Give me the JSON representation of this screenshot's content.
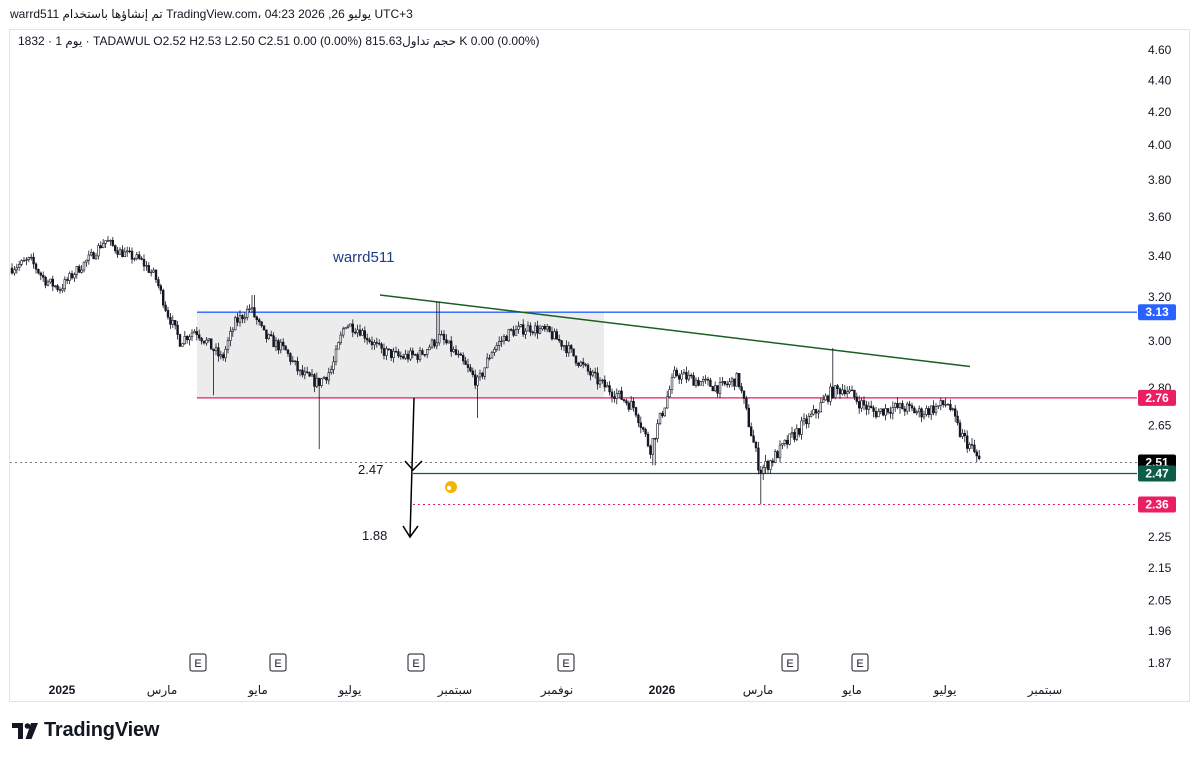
{
  "header": {
    "publish_line": "warrd511 تم إنشاؤها باستخدام TradingView.com، 04:23 2026 ,26 يوليو UTC+3",
    "symbol_line": "1832 · 1 يوم · TADAWUL   O2.52   H2.53   L2.50   C2.51   0.00 (0.00%)   حجم تداول815.63 K   0.00 (0.00%)"
  },
  "branding": {
    "logo_text": "TradingView",
    "logo_icon": "tradingview-logo-icon"
  },
  "chart_data": {
    "type": "candlestick",
    "watermark": "warrd511",
    "y_ticks": [
      "4.60",
      "4.40",
      "4.20",
      "4.00",
      "3.80",
      "3.60",
      "3.40",
      "3.20",
      "3.00",
      "2.80",
      "2.65",
      "2.25",
      "2.15",
      "2.05",
      "1.96",
      "1.87"
    ],
    "y_scale": "log",
    "x_labels": [
      {
        "text": "2025",
        "bold": true
      },
      {
        "text": "مارس",
        "bold": false
      },
      {
        "text": "مايو",
        "bold": false
      },
      {
        "text": "يوليو",
        "bold": false
      },
      {
        "text": "سبتمبر",
        "bold": false
      },
      {
        "text": "نوفمبر",
        "bold": false
      },
      {
        "text": "2026",
        "bold": true
      },
      {
        "text": "مارس",
        "bold": false
      },
      {
        "text": "مايو",
        "bold": false
      },
      {
        "text": "يوليو",
        "bold": false
      },
      {
        "text": "سبتمبر",
        "bold": false
      }
    ],
    "earnings_markers": [
      "E",
      "E",
      "E",
      "E",
      "E",
      "E"
    ],
    "price_badges": [
      {
        "value": "3.13",
        "color": "#2962ff"
      },
      {
        "value": "2.76",
        "color": "#e91e63"
      },
      {
        "value": "2.51",
        "color": "#000000"
      },
      {
        "value": "2.47",
        "color": "#0d5c4a"
      },
      {
        "value": "2.36",
        "color": "#e91e63"
      }
    ],
    "annotations": {
      "target_1": "2.47",
      "target_2": "1.88"
    },
    "horizontal_lines": [
      {
        "price": 3.13,
        "color": "#2962ff",
        "style": "solid"
      },
      {
        "price": 2.76,
        "color": "#e91e63",
        "style": "solid"
      },
      {
        "price": 2.47,
        "color": "#0d5c4a",
        "style": "solid"
      },
      {
        "price": 2.36,
        "color": "#e91e63",
        "style": "dotted"
      },
      {
        "price": 2.51,
        "color": "#787b86",
        "style": "dotted"
      }
    ],
    "trendline": {
      "from_price": 3.21,
      "to_price": 2.89,
      "color": "#1b5e20"
    },
    "range_box": {
      "top": 3.13,
      "bottom": 2.76,
      "color": "#d1d4dc"
    },
    "last_close": 2.51
  }
}
